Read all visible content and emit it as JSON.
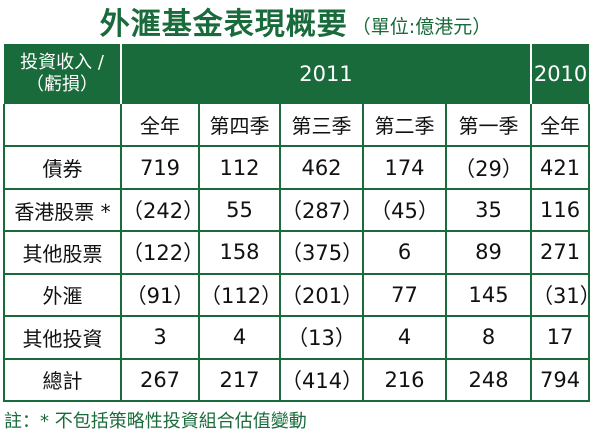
{
  "header": {
    "title": "外滙基金表現概要",
    "unit": "（單位:億港元）"
  },
  "table": {
    "row_header": [
      "投資收入 /",
      "（虧損）"
    ],
    "year_current": "2011",
    "year_previous": "2010",
    "columns": [
      "全年",
      "第四季",
      "第三季",
      "第二季",
      "第一季",
      "全年"
    ],
    "rows": [
      {
        "label": "債券",
        "cells": [
          "719",
          "112",
          "462",
          "174",
          "（29）",
          "421"
        ]
      },
      {
        "label": "香港股票 *",
        "cells": [
          "（242）",
          "55",
          "（287）",
          "（45）",
          "35",
          "116"
        ]
      },
      {
        "label": "其他股票",
        "cells": [
          "（122）",
          "158",
          "（375）",
          "6",
          "89",
          "271"
        ]
      },
      {
        "label": "外滙",
        "cells": [
          "（91）",
          "（112）",
          "（201）",
          "77",
          "145",
          "（31）"
        ]
      },
      {
        "label": "其他投資",
        "cells": [
          "3",
          "4",
          "（13）",
          "4",
          "8",
          "17"
        ]
      },
      {
        "label": "總計",
        "cells": [
          "267",
          "217",
          "（414）",
          "216",
          "248",
          "794"
        ]
      }
    ]
  },
  "note": "註：* 不包括策略性投資組合估值變動",
  "colors": {
    "accent": "#1a6b3c",
    "text": "#111111",
    "background": "#ffffff"
  }
}
